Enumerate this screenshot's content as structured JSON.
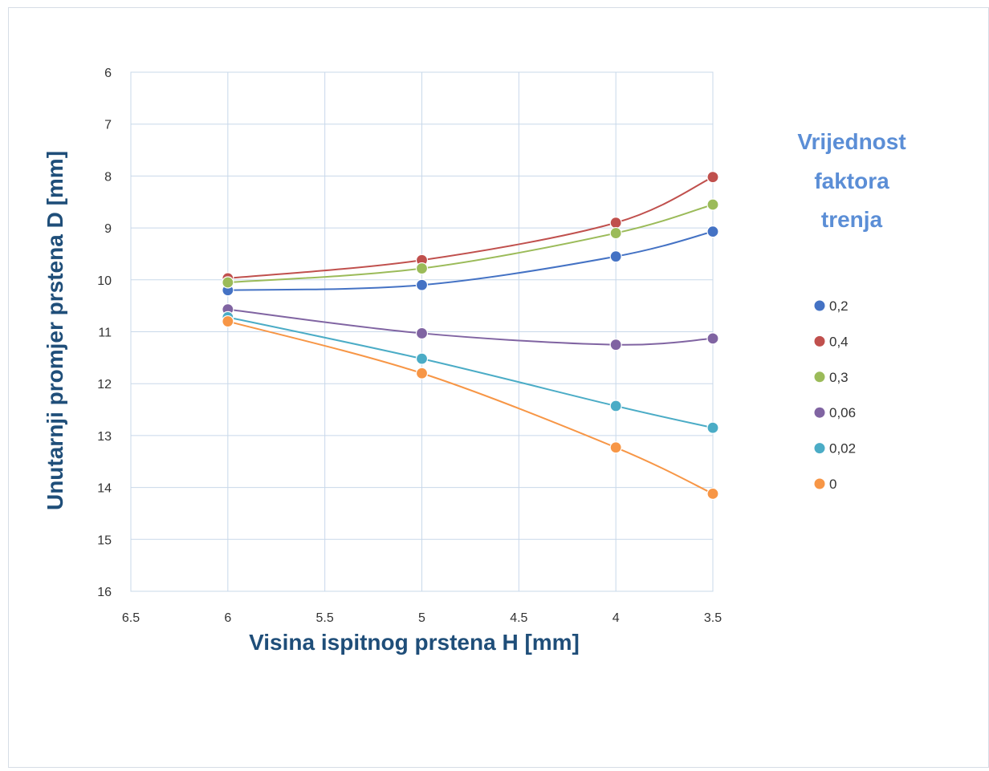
{
  "chart_data": {
    "type": "scatter",
    "xlabel": "Visina ispitnog prstena  H [mm]",
    "ylabel": "Unutarnji promjer prstena D [mm]",
    "xlim": [
      6.5,
      3.5
    ],
    "ylim": [
      16,
      6
    ],
    "x_reversed": true,
    "y_reversed": true,
    "x_ticks": [
      "6.5",
      "6",
      "5.5",
      "5",
      "4.5",
      "4",
      "3.5"
    ],
    "y_ticks": [
      "6",
      "7",
      "8",
      "9",
      "10",
      "11",
      "12",
      "13",
      "14",
      "15",
      "16"
    ],
    "grid": true,
    "legend": {
      "title_lines": [
        "Vrijednost",
        "faktora",
        "trenja"
      ],
      "placement": "right"
    },
    "series": [
      {
        "name": "0,2",
        "color": "#4472c4",
        "x": [
          6,
          5,
          4,
          3.5
        ],
        "y": [
          10.2,
          10.1,
          9.55,
          9.07
        ]
      },
      {
        "name": "0,4",
        "color": "#c0504d",
        "x": [
          6,
          5,
          4,
          3.5
        ],
        "y": [
          9.97,
          9.62,
          8.9,
          8.02
        ]
      },
      {
        "name": "0,3",
        "color": "#9bbb59",
        "x": [
          6,
          5,
          4,
          3.5
        ],
        "y": [
          10.05,
          9.78,
          9.1,
          8.55
        ]
      },
      {
        "name": "0,06",
        "color": "#8064a2",
        "x": [
          6,
          5,
          4,
          3.5
        ],
        "y": [
          10.57,
          11.03,
          11.25,
          11.13
        ]
      },
      {
        "name": "0,02",
        "color": "#4bacc6",
        "x": [
          6,
          5,
          4,
          3.5
        ],
        "y": [
          10.72,
          11.52,
          12.43,
          12.85
        ]
      },
      {
        "name": "0",
        "color": "#f79646",
        "x": [
          6,
          5,
          4,
          3.5
        ],
        "y": [
          10.8,
          11.8,
          13.23,
          14.12
        ]
      }
    ]
  }
}
